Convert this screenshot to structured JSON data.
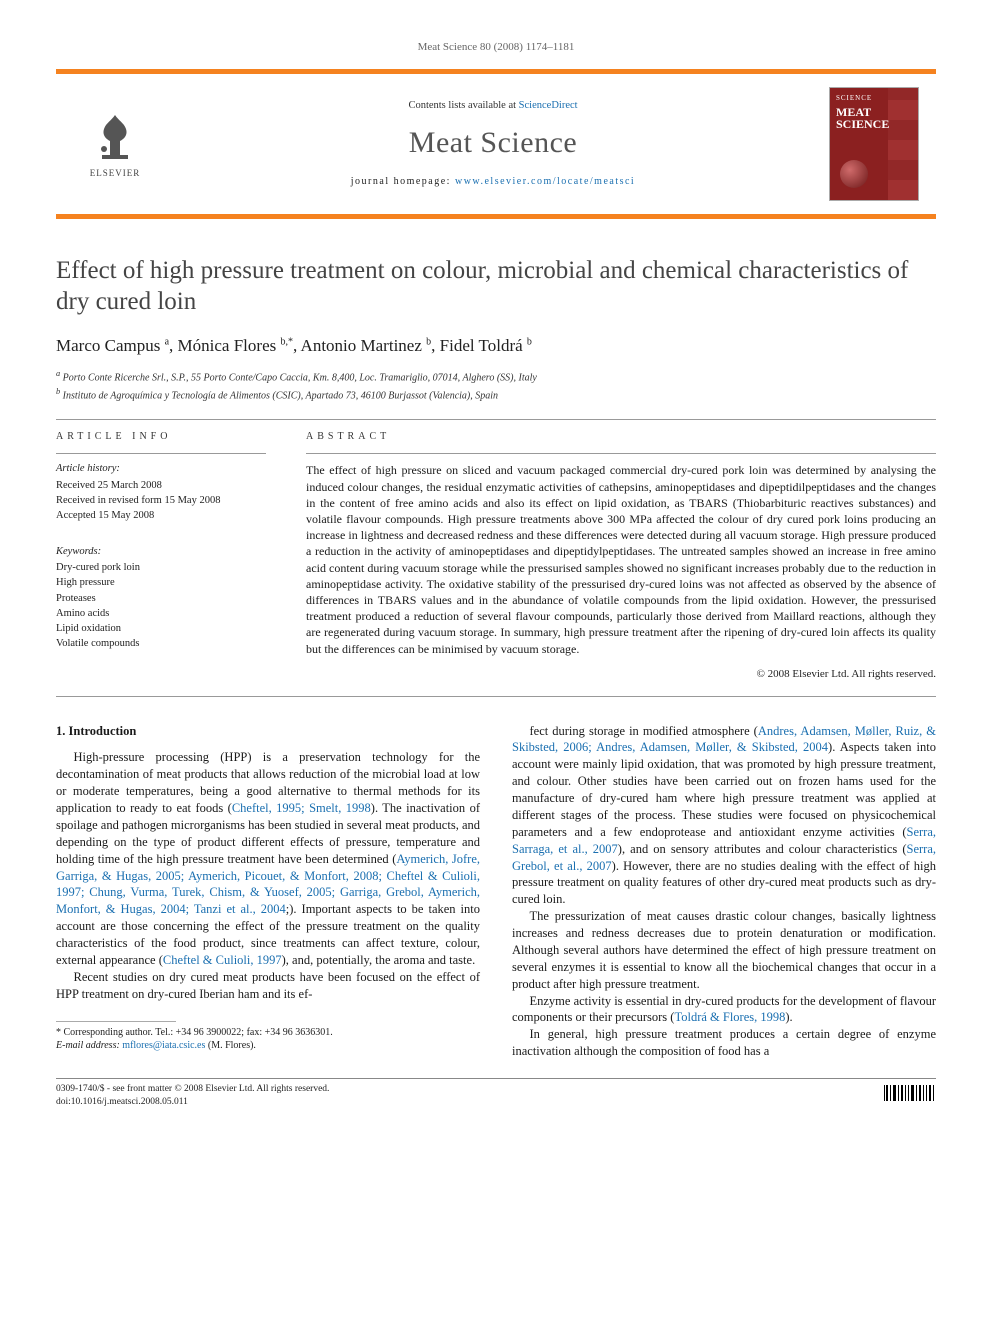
{
  "running_head": "Meat Science 80 (2008) 1174–1181",
  "banner": {
    "publisher_label": "ELSEVIER",
    "contents_prefix": "Contents lists available at ",
    "contents_link": "ScienceDirect",
    "journal_name": "Meat Science",
    "homepage_prefix": "journal homepage: ",
    "homepage_url": "www.elsevier.com/locate/meatsci",
    "cover": {
      "top_label": "SCIENCE",
      "title_line1": "MEAT",
      "title_line2": "SCIENCE"
    },
    "accent_color": "#f5821f",
    "link_color": "#1a6fb0",
    "cover_bg": "#8b2020"
  },
  "article": {
    "title": "Effect of high pressure treatment on colour, microbial and chemical characteristics of dry cured loin",
    "authors_html": "Marco Campus <sup>a</sup>, Mónica Flores <sup>b,*</sup>, Antonio Martinez <sup>b</sup>, Fidel Toldrá <sup>b</sup>",
    "authors": [
      {
        "name": "Marco Campus",
        "aff": "a"
      },
      {
        "name": "Mónica Flores",
        "aff": "b,*"
      },
      {
        "name": "Antonio Martinez",
        "aff": "b"
      },
      {
        "name": "Fidel Toldrá",
        "aff": "b"
      }
    ],
    "affiliations": [
      "a Porto Conte Ricerche Srl., S.P., 55 Porto Conte/Capo Caccia, Km. 8,400, Loc. Tramariglio, 07014, Alghero (SS), Italy",
      "b Instituto de Agroquímica y Tecnología de Alimentos (CSIC), Apartado 73, 46100 Burjassot (Valencia), Spain"
    ],
    "info_head": "ARTICLE INFO",
    "abstract_head": "ABSTRACT",
    "history_label": "Article history:",
    "history": [
      "Received 25 March 2008",
      "Received in revised form 15 May 2008",
      "Accepted 15 May 2008"
    ],
    "keywords_label": "Keywords:",
    "keywords": [
      "Dry-cured pork loin",
      "High pressure",
      "Proteases",
      "Amino acids",
      "Lipid oxidation",
      "Volatile compounds"
    ],
    "abstract": "The effect of high pressure on sliced and vacuum packaged commercial dry-cured pork loin was determined by analysing the induced colour changes, the residual enzymatic activities of cathepsins, aminopeptidases and dipeptidilpeptidases and the changes in the content of free amino acids and also its effect on lipid oxidation, as TBARS (Thiobarbituric reactives substances) and volatile flavour compounds. High pressure treatments above 300 MPa affected the colour of dry cured pork loins producing an increase in lightness and decreased redness and these differences were detected during all vacuum storage. High pressure produced a reduction in the activity of aminopeptidases and dipeptidylpeptidases. The untreated samples showed an increase in free amino acid content during vacuum storage while the pressurised samples showed no significant increases probably due to the reduction in aminopeptidase activity. The oxidative stability of the pressurised dry-cured loins was not affected as observed by the absence of differences in TBARS values and in the abundance of volatile compounds from the lipid oxidation. However, the pressurised treatment produced a reduction of several flavour compounds, particularly those derived from Maillard reactions, although they are regenerated during vacuum storage. In summary, high pressure treatment after the ripening of dry-cured loin affects its quality but the differences can be minimised by vacuum storage.",
    "copyright": "© 2008 Elsevier Ltd. All rights reserved."
  },
  "body": {
    "section_number": "1.",
    "section_title": "Introduction",
    "col1": [
      "High-pressure processing (HPP) is a preservation technology for the decontamination of meat products that allows reduction of the microbial load at low or moderate temperatures, being a good alternative to thermal methods for its application to ready to eat foods (|Cheftel, 1995; Smelt, 1998|). The inactivation of spoilage and pathogen microrganisms has been studied in several meat products, and depending on the type of product different effects of pressure, temperature and holding time of the high pressure treatment have been determined (|Aymerich, Jofre, Garriga, & Hugas, 2005; Aymerich, Picouet, & Monfort, 2008; Cheftel & Culioli, 1997; Chung, Vurma, Turek, Chism, & Yuosef, 2005; Garriga, Grebol, Aymerich, Monfort, & Hugas, 2004; Tanzi et al., 2004|;). Important aspects to be taken into account are those concerning the effect of the pressure treatment on the quality characteristics of the food product, since treatments can affect texture, colour, external appearance (|Cheftel & Culioli, 1997|), and, potentially, the aroma and taste.",
      "Recent studies on dry cured meat products have been focused on the effect of HPP treatment on dry-cured Iberian ham and its ef-"
    ],
    "col2": [
      "fect during storage in modified atmosphere (|Andres, Adamsen, Møller, Ruiz, & Skibsted, 2006; Andres, Adamsen, Møller, & Skibsted, 2004|). Aspects taken into account were mainly lipid oxidation, that was promoted by high pressure treatment, and colour. Other studies have been carried out on frozen hams used for the manufacture of dry-cured ham where high pressure treatment was applied at different stages of the process. These studies were focused on physicochemical parameters and a few endoprotease and antioxidant enzyme activities (|Serra, Sarraga, et al., 2007|), and on sensory attributes and colour characteristics (|Serra, Grebol, et al., 2007|). However, there are no studies dealing with the effect of high pressure treatment on quality features of other dry-cured meat products such as dry-cured loin.",
      "The pressurization of meat causes drastic colour changes, basically lightness increases and redness decreases due to protein denaturation or modification. Although several authors have determined the effect of high pressure treatment on several enzymes it is essential to know all the biochemical changes that occur in a product after high pressure treatment.",
      "Enzyme activity is essential in dry-cured products for the development of flavour components or their precursors (|Toldrá & Flores, 1998|).",
      "In general, high pressure treatment produces a certain degree of enzyme inactivation although the composition of food has a"
    ]
  },
  "footnote": {
    "corresponding": "* Corresponding author. Tel.: +34 96 3900022; fax: +34 96 3636301.",
    "email_label": "E-mail address:",
    "email": "mflores@iata.csic.es",
    "email_who": "(M. Flores)."
  },
  "footer": {
    "left_line1": "0309-1740/$ - see front matter © 2008 Elsevier Ltd. All rights reserved.",
    "left_line2": "doi:10.1016/j.meatsci.2008.05.011"
  }
}
